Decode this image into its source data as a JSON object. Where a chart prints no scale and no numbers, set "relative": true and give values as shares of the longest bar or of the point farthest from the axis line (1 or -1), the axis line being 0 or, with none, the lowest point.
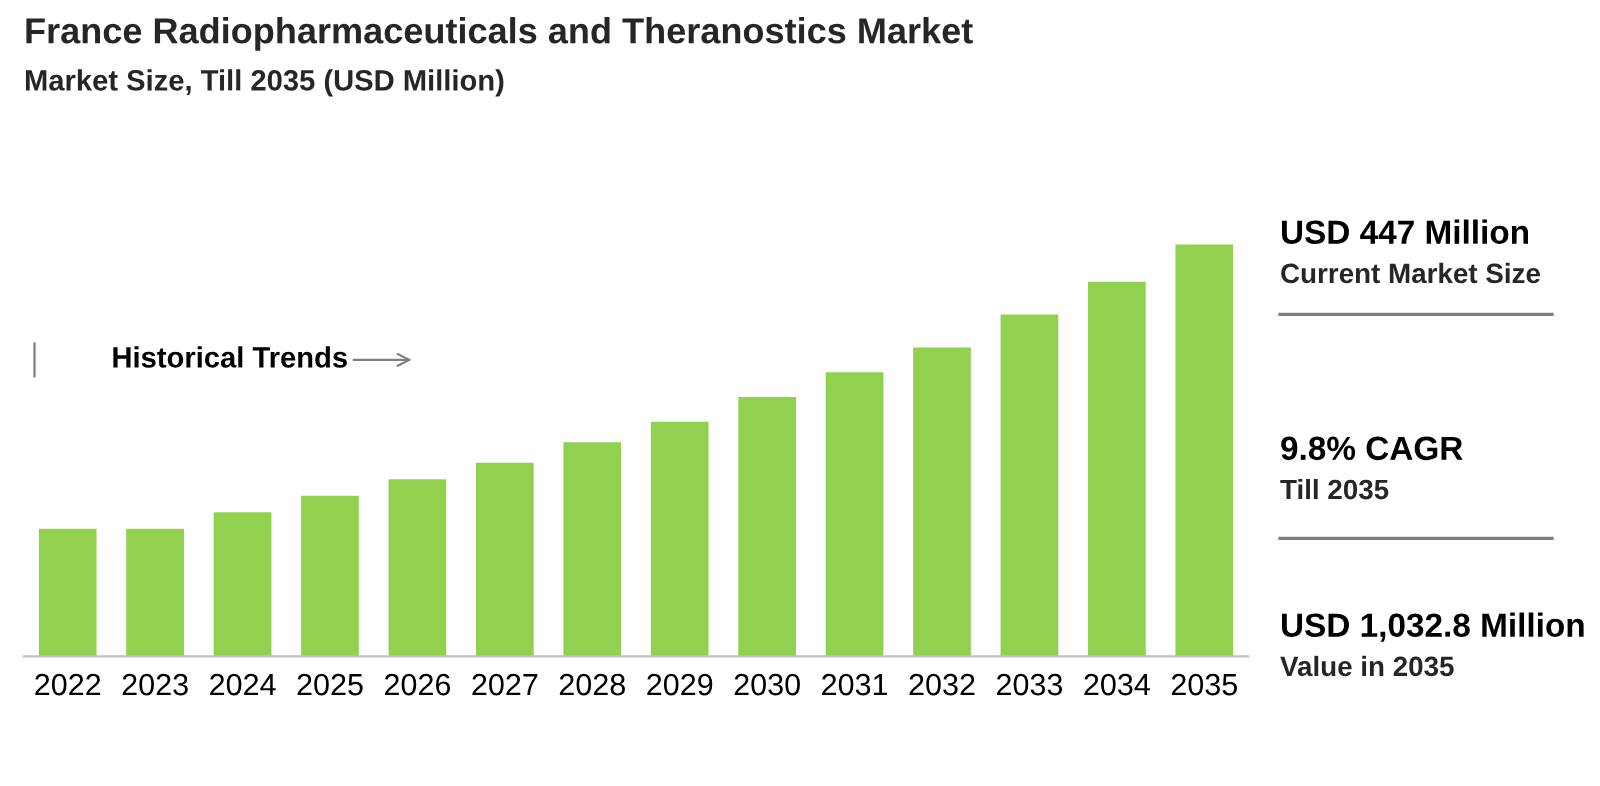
{
  "chart_data": {
    "type": "bar",
    "title": "France Radiopharmaceuticals and Theranostics Market",
    "subtitle": "Market Size, Till 2035 (USD Million)",
    "categories": [
      "2022",
      "2023",
      "2024",
      "2025",
      "2026",
      "2027",
      "2028",
      "2029",
      "2030",
      "2031",
      "2032",
      "2033",
      "2034",
      "2035"
    ],
    "values": [
      0.31,
      0.31,
      0.35,
      0.39,
      0.43,
      0.47,
      0.52,
      0.57,
      0.63,
      0.69,
      0.75,
      0.83,
      0.91,
      1
    ],
    "color": "#92d050",
    "relative": true,
    "grid": false,
    "legend": false,
    "annotations": [
      "Historical Trends",
      "USD 447 Million",
      "Current Market Size",
      "9.8% CAGR",
      "Till 2035",
      "USD 1,032.8 Million",
      "Value in 2035"
    ]
  }
}
